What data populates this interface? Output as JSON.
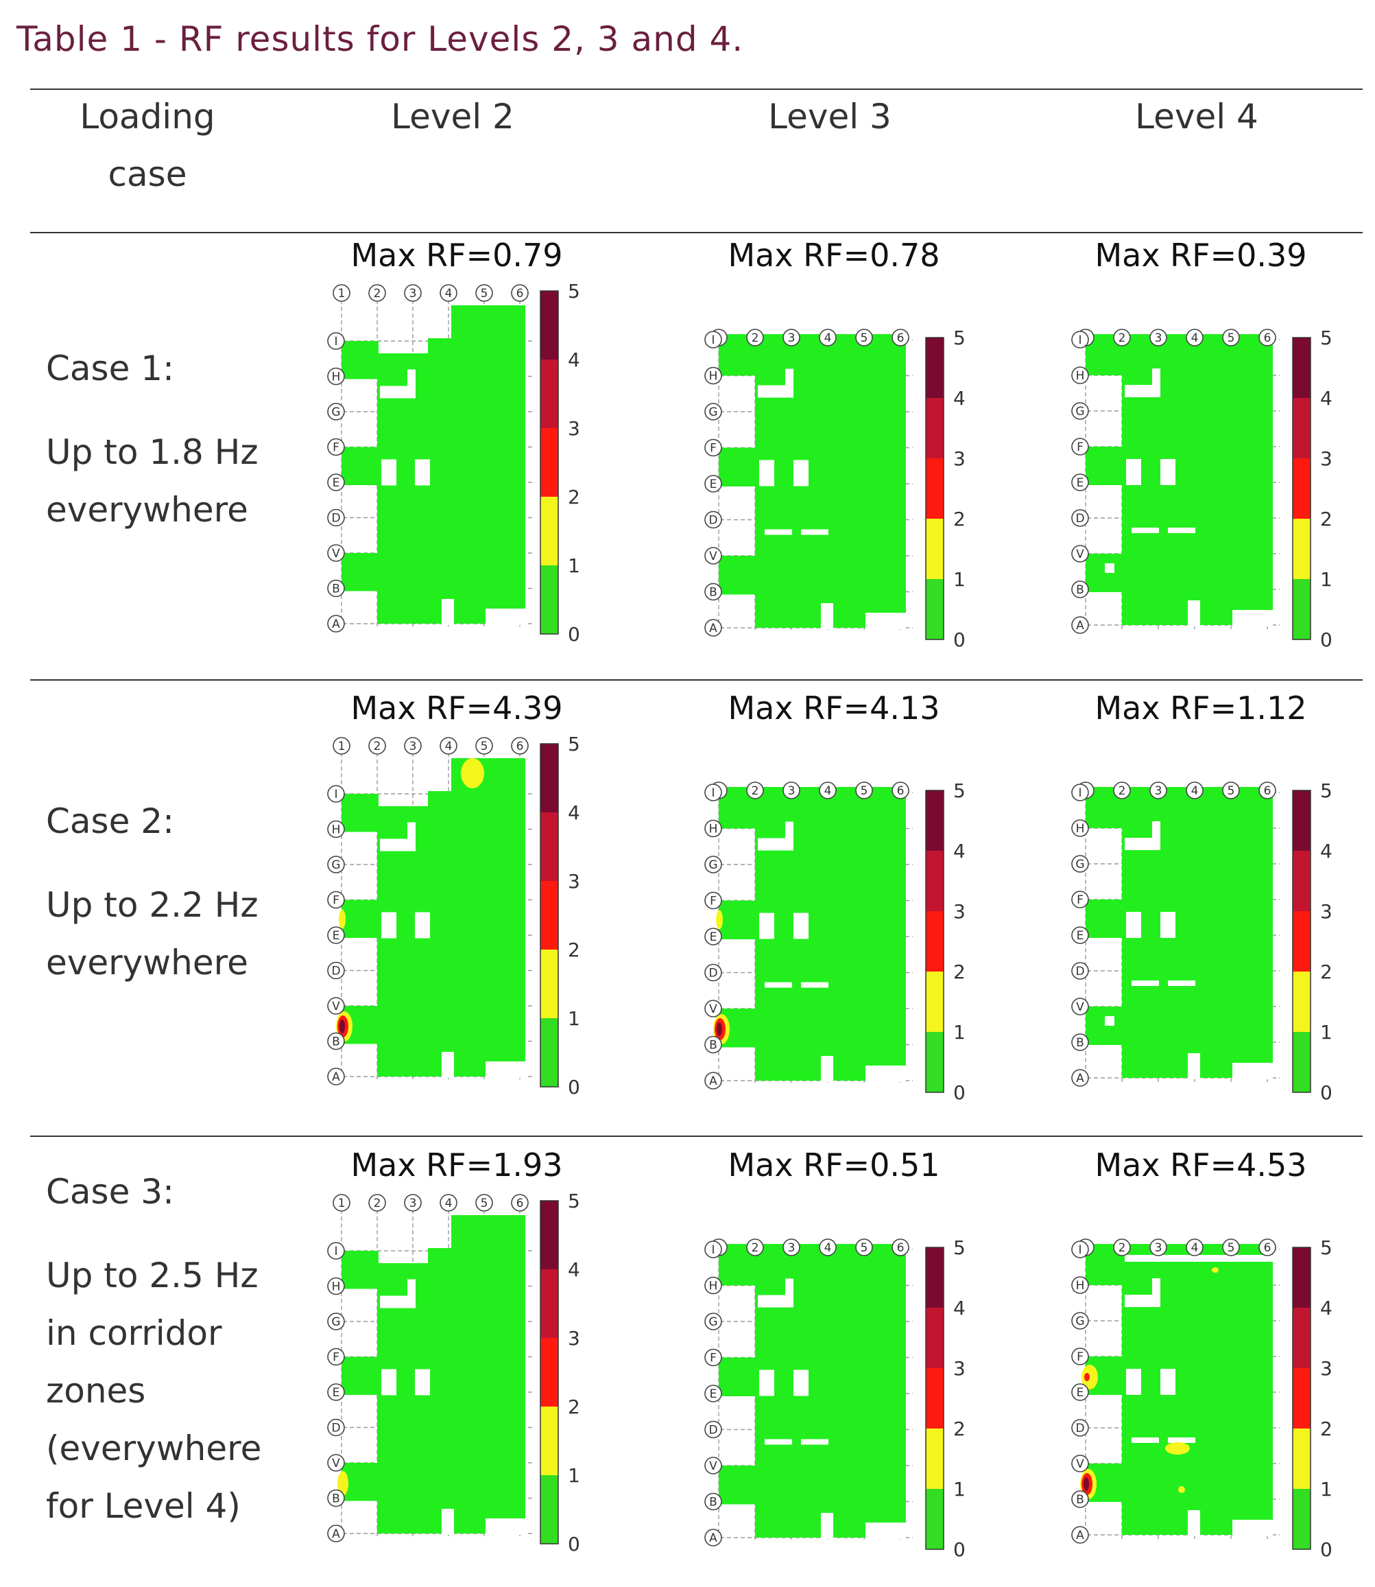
{
  "caption": "Table 1 - RF results for Levels 2, 3 and 4.",
  "headers": {
    "loading_case": [
      "Loading",
      "case"
    ],
    "levels": [
      "Level 2",
      "Level 3",
      "Level 4"
    ]
  },
  "cases": [
    {
      "lines": [
        "Case 1:",
        "Up to 1.8 Hz",
        "everywhere"
      ]
    },
    {
      "lines": [
        "Case 2:",
        "Up to 2.2 Hz",
        "everywhere"
      ]
    },
    {
      "lines": [
        "Case 3:",
        "Up to 2.5 Hz",
        "in corridor",
        "zones",
        "(everywhere",
        "for Level 4)"
      ]
    }
  ],
  "grid_labels": {
    "columns": [
      "1",
      "2",
      "3",
      "4",
      "5",
      "6"
    ],
    "rows": [
      "I",
      "H",
      "G",
      "F",
      "E",
      "D",
      "V",
      "B",
      "A"
    ]
  },
  "colorbar": {
    "ticks": [
      "5",
      "4",
      "3",
      "2",
      "1",
      "0"
    ],
    "bands": [
      {
        "range": [
          0,
          1
        ],
        "color": "#33dd22"
      },
      {
        "range": [
          1,
          2
        ],
        "color": "#f5f51e"
      },
      {
        "range": [
          2,
          3
        ],
        "color": "#ff1a10"
      },
      {
        "range": [
          3,
          4
        ],
        "color": "#c41530"
      },
      {
        "range": [
          4,
          5
        ],
        "color": "#7a0a30"
      }
    ]
  },
  "floor_color": "#22ee1e",
  "results": [
    [
      {
        "label": "Max RF=0.79",
        "max_rf": 0.79,
        "hotspots": []
      },
      {
        "label": "Max RF=0.78",
        "max_rf": 0.78,
        "hotspots": []
      },
      {
        "label": "Max RF=0.39",
        "max_rf": 0.39,
        "hotspots": []
      }
    ],
    [
      {
        "label": "Max RF=4.39",
        "max_rf": 4.39,
        "hotspots": [
          "top-blob",
          "edge-b-red",
          "edge-f-yellow"
        ]
      },
      {
        "label": "Max RF=4.13",
        "max_rf": 4.13,
        "hotspots": [
          "edge-b-red",
          "edge-f-yellow"
        ]
      },
      {
        "label": "Max RF=1.12",
        "max_rf": 1.12,
        "hotspots": []
      }
    ],
    [
      {
        "label": "Max RF=1.93",
        "max_rf": 1.93,
        "hotspots": [
          "edge-b-yellow"
        ]
      },
      {
        "label": "Max RF=0.51",
        "max_rf": 0.51,
        "hotspots": []
      },
      {
        "label": "Max RF=4.53",
        "max_rf": 4.53,
        "hotspots": [
          "edge-b-red",
          "edge-e-yellow",
          "mid-dot",
          "top-dot",
          "small-dot"
        ]
      }
    ]
  ]
}
